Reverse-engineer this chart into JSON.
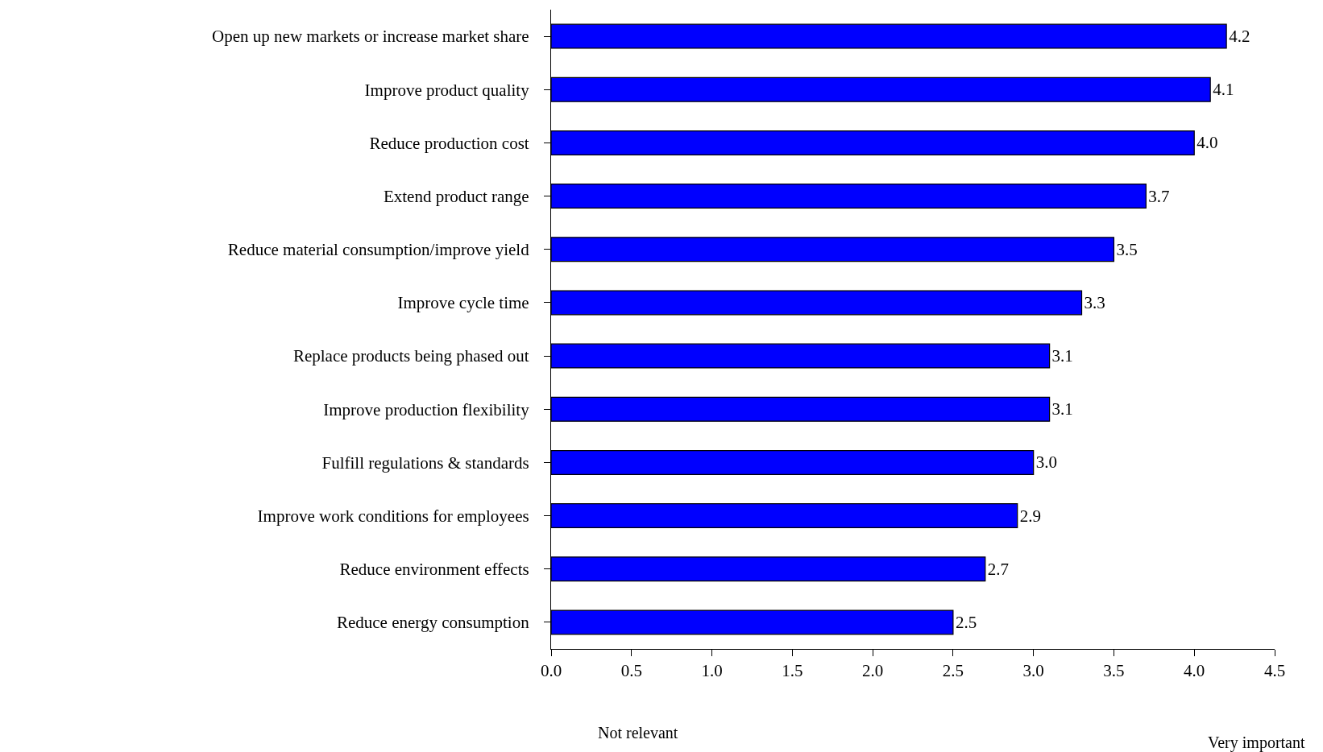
{
  "chart_data": {
    "type": "bar",
    "orientation": "horizontal",
    "categories": [
      "Open up new markets or increase market share",
      "Improve product quality",
      "Reduce production cost",
      "Extend product range",
      "Reduce material consumption/improve yield",
      "Improve cycle time",
      "Replace products being phased out",
      "Improve production flexibility",
      "Fulfill regulations & standards",
      "Improve work conditions for employees",
      "Reduce environment effects",
      "Reduce energy consumption"
    ],
    "values": [
      4.2,
      4.1,
      4.0,
      3.7,
      3.5,
      3.3,
      3.1,
      3.1,
      3.0,
      2.9,
      2.7,
      2.5
    ],
    "color": "#0000ff",
    "xlim": [
      0,
      4.5
    ],
    "xticks": [
      {
        "value": 0,
        "label": "0.0"
      },
      {
        "value": 0.5,
        "label": "0.5"
      },
      {
        "value": 1,
        "label": "1.0"
      },
      {
        "value": 1.5,
        "label": "1.5"
      },
      {
        "value": 2,
        "label": "2.0"
      },
      {
        "value": 2.5,
        "label": "2.5"
      },
      {
        "value": 3,
        "label": "3.0"
      },
      {
        "value": 3.5,
        "label": "3.5"
      },
      {
        "value": 4,
        "label": "4.0"
      },
      {
        "value": 4.5,
        "label": "4.5"
      }
    ],
    "value_labels": [
      "4.2",
      "4.1",
      "4.0",
      "3.7",
      "3.5",
      "3.3",
      "3.1",
      "3.1",
      "3.0",
      "2.9",
      "2.7",
      "2.5"
    ],
    "annotations": [
      "Not relevant",
      "Very important"
    ]
  }
}
